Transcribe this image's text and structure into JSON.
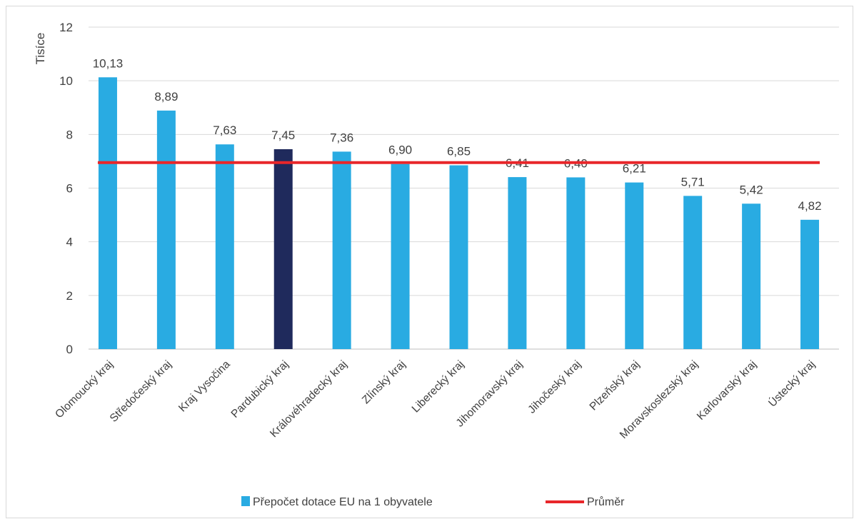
{
  "chart_data": {
    "type": "bar",
    "ylabel": "Tisíce",
    "ylim": [
      0,
      12
    ],
    "yticks": [
      0,
      2,
      4,
      6,
      8,
      10,
      12
    ],
    "grid": true,
    "legend_position": "bottom",
    "categories": [
      "Olomoucký kraj",
      "Středočeský kraj",
      "Kraj Vysočina",
      "Pardubický kraj",
      "Královéhradecký kraj",
      "Zlínský kraj",
      "Liberecký kraj",
      "Jihomoravský kraj",
      "Jihočeský kraj",
      "Plzeňský kraj",
      "Moravskoslezský kraj",
      "Karlovarský kraj",
      "Ústecký kraj"
    ],
    "series": [
      {
        "name": "Přepočet dotace EU na 1 obyvatele",
        "kind": "bar",
        "color": "#29abe2",
        "highlight_color": "#1f2a5c",
        "highlight_category": "Pardubický kraj",
        "values": [
          10.13,
          8.89,
          7.63,
          7.45,
          7.36,
          6.9,
          6.85,
          6.41,
          6.4,
          6.21,
          5.71,
          5.42,
          4.82
        ],
        "labels": [
          "10,13",
          "8,89",
          "7,63",
          "7,45",
          "7,36",
          "6,90",
          "6,85",
          "6,41",
          "6,40",
          "6,21",
          "5,71",
          "5,42",
          "4,82"
        ]
      },
      {
        "name": "Průměr",
        "kind": "line",
        "color": "#e8262a",
        "value": 6.95
      }
    ]
  }
}
